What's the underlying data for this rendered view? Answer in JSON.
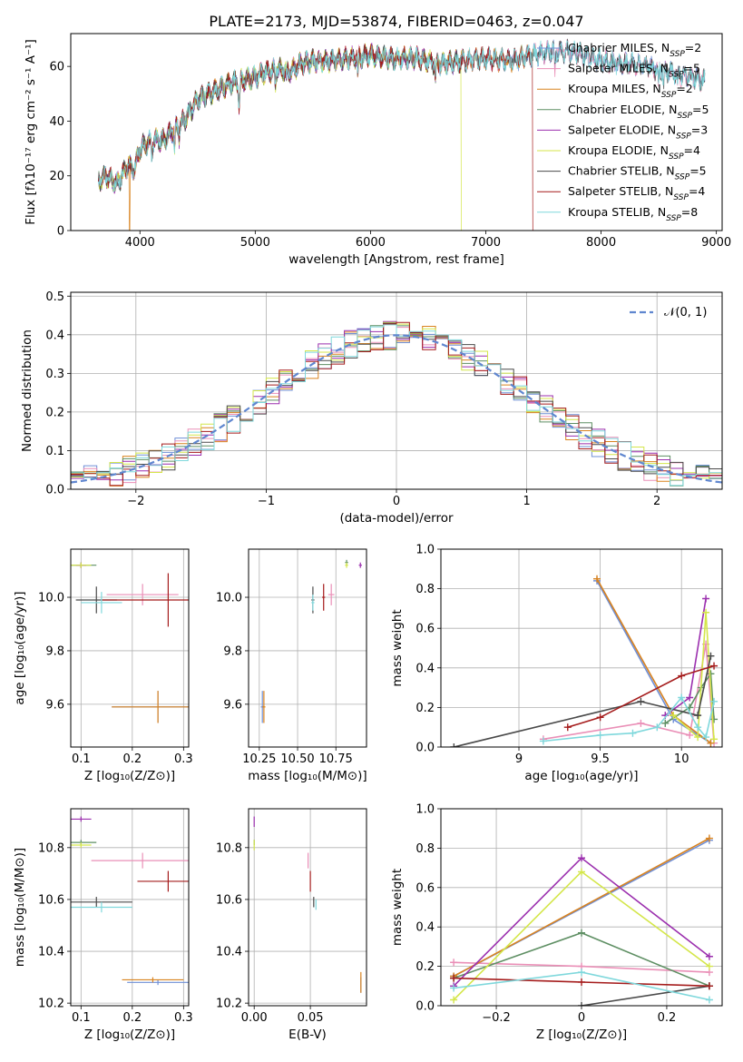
{
  "figure": {
    "title": "PLATE=2173, MJD=53874, FIBERID=0463, z=0.047"
  },
  "series_styles": [
    {
      "name": "Chabrier MILES",
      "label_main": "Chabrier MILES, N",
      "label_sub": "SSP",
      "label_tail": "=2",
      "color": "#6f8fd6"
    },
    {
      "name": "Salpeter MILES",
      "label_main": "Salpeter MILES, N",
      "label_sub": "SSP",
      "label_tail": "=5",
      "color": "#ea8fb7"
    },
    {
      "name": "Kroupa MILES",
      "label_main": "Kroupa MILES, N",
      "label_sub": "SSP",
      "label_tail": "=2",
      "color": "#d9831f"
    },
    {
      "name": "Chabrier ELODIE",
      "label_main": "Chabrier ELODIE, N",
      "label_sub": "SSP",
      "label_tail": "=5",
      "color": "#5e8f63"
    },
    {
      "name": "Salpeter ELODIE",
      "label_main": "Salpeter ELODIE, N",
      "label_sub": "SSP",
      "label_tail": "=3",
      "color": "#9b2fae"
    },
    {
      "name": "Kroupa ELODIE",
      "label_main": "Kroupa ELODIE, N",
      "label_sub": "SSP",
      "label_tail": "=4",
      "color": "#d4e64a"
    },
    {
      "name": "Chabrier STELIB",
      "label_main": "Chabrier STELIB, N",
      "label_sub": "SSP",
      "label_tail": "=5",
      "color": "#4a4a4a"
    },
    {
      "name": "Salpeter STELIB",
      "label_main": "Salpeter STELIB, N",
      "label_sub": "SSP",
      "label_tail": "=4",
      "color": "#a51c1c"
    },
    {
      "name": "Kroupa STELIB",
      "label_main": "Kroupa STELIB, N",
      "label_sub": "SSP",
      "label_tail": "=8",
      "color": "#7fd8dc"
    }
  ],
  "chart_data": [
    {
      "id": "spectrum",
      "type": "line",
      "xlabel": "wavelength [Angstrom, rest frame]",
      "ylabel": "Flux [fλ10⁻¹⁷ erg cm⁻² s⁻¹ A⁻¹]",
      "xlim": [
        3400,
        9050
      ],
      "ylim": [
        0,
        72
      ],
      "xticks": [
        4000,
        5000,
        6000,
        7000,
        8000,
        9000
      ],
      "yticks": [
        0,
        20,
        40,
        60
      ],
      "legend": "upper right",
      "grid": false,
      "continuum": [
        [
          3640,
          18
        ],
        [
          3700,
          20
        ],
        [
          3800,
          17
        ],
        [
          3900,
          24
        ],
        [
          3950,
          22
        ],
        [
          4000,
          30
        ],
        [
          4100,
          33
        ],
        [
          4200,
          33
        ],
        [
          4300,
          37
        ],
        [
          4400,
          41
        ],
        [
          4500,
          48
        ],
        [
          4600,
          50
        ],
        [
          4700,
          52
        ],
        [
          4800,
          54
        ],
        [
          4900,
          55
        ],
        [
          5000,
          56
        ],
        [
          5100,
          58
        ],
        [
          5200,
          59
        ],
        [
          5300,
          58
        ],
        [
          5400,
          61
        ],
        [
          5500,
          62
        ],
        [
          5600,
          62
        ],
        [
          5800,
          63
        ],
        [
          6000,
          64
        ],
        [
          6200,
          63
        ],
        [
          6400,
          63
        ],
        [
          6600,
          61
        ],
        [
          6800,
          62
        ],
        [
          7000,
          63
        ],
        [
          7200,
          62
        ],
        [
          7400,
          64
        ],
        [
          7600,
          66
        ],
        [
          7800,
          65
        ],
        [
          8000,
          62
        ],
        [
          8200,
          61
        ],
        [
          8400,
          60
        ],
        [
          8600,
          58
        ],
        [
          8800,
          56
        ],
        [
          8900,
          55
        ]
      ],
      "dips": [
        [
          3934,
          22
        ],
        [
          3969,
          24
        ],
        [
          4102,
          26
        ],
        [
          4300,
          30
        ],
        [
          4340,
          34
        ],
        [
          4861,
          45
        ],
        [
          5175,
          52
        ],
        [
          5270,
          54
        ],
        [
          5890,
          56
        ],
        [
          6563,
          55
        ],
        [
          6870,
          60
        ],
        [
          7600,
          58
        ],
        [
          8498,
          52
        ],
        [
          8542,
          52
        ],
        [
          8662,
          52
        ]
      ],
      "spectrum_range_by_series": {
        "Chabrier MILES": [
          3640,
          8900
        ],
        "Salpeter MILES": [
          3640,
          8900
        ],
        "Kroupa MILES": [
          3640,
          7410
        ],
        "Chabrier ELODIE": [
          3640,
          6790
        ],
        "Salpeter ELODIE": [
          3640,
          6790
        ],
        "Kroupa ELODIE": [
          3640,
          6790
        ],
        "Chabrier STELIB": [
          3640,
          8900
        ],
        "Salpeter STELIB": [
          3640,
          7410
        ],
        "Kroupa STELIB": [
          3640,
          8900
        ]
      },
      "drop_to_zero": [
        {
          "x": 3910,
          "series": "Kroupa MILES"
        },
        {
          "x": 6790,
          "series": "Kroupa ELODIE"
        },
        {
          "x": 7410,
          "series": "Salpeter STELIB"
        }
      ]
    },
    {
      "id": "residual-histogram",
      "type": "histogram",
      "xlabel": "(data-model)/error",
      "ylabel": "Normed distribution",
      "xlim": [
        -2.5,
        2.5
      ],
      "ylim": [
        0,
        0.51
      ],
      "xticks": [
        -2,
        -1,
        0,
        1,
        2
      ],
      "yticks": [
        0.0,
        0.1,
        0.2,
        0.3,
        0.4,
        0.5
      ],
      "grid": true,
      "bin_width": 0.1,
      "reference_curve": {
        "label": "𝒩(0, 1)",
        "mean": 0,
        "sigma": 1,
        "color": "#5f86cf"
      },
      "legend": "upper right"
    },
    {
      "id": "age-vs-Z",
      "type": "scatter",
      "xlabel": "Z [log₁₀(Z/Z⊙)]",
      "ylabel": "age  [log₁₀(age/yr)]",
      "xlim": [
        0.08,
        0.31
      ],
      "ylim": [
        9.44,
        10.18
      ],
      "xticks": [
        0.1,
        0.2,
        0.3
      ],
      "yticks": [
        9.6,
        9.8,
        10.0
      ],
      "grid": true,
      "points": [
        {
          "series": "Chabrier MILES",
          "x": 0.25,
          "y": 9.59,
          "xerr": 0.09,
          "yerr": 0.06
        },
        {
          "series": "Salpeter MILES",
          "x": 0.22,
          "y": 10.01,
          "xerr": 0.07,
          "yerr": 0.04
        },
        {
          "series": "Kroupa MILES",
          "x": 0.25,
          "y": 9.59,
          "xerr": 0.09,
          "yerr": 0.06
        },
        {
          "series": "Chabrier ELODIE",
          "x": 0.1,
          "y": 10.12,
          "xerr": 0.03,
          "yerr": 0.01
        },
        {
          "series": "Salpeter ELODIE",
          "x": 0.1,
          "y": 10.12,
          "xerr": 0.01,
          "yerr": 0.01
        },
        {
          "series": "Kroupa ELODIE",
          "x": 0.1,
          "y": 10.12,
          "xerr": 0.02,
          "yerr": 0.01
        },
        {
          "series": "Chabrier STELIB",
          "x": 0.13,
          "y": 9.99,
          "xerr": 0.04,
          "yerr": 0.05
        },
        {
          "series": "Salpeter STELIB",
          "x": 0.27,
          "y": 9.99,
          "xerr": 0.13,
          "yerr": 0.1
        },
        {
          "series": "Kroupa STELIB",
          "x": 0.14,
          "y": 9.98,
          "xerr": 0.04,
          "yerr": 0.04
        }
      ]
    },
    {
      "id": "age-vs-mass",
      "type": "scatter",
      "xlabel": "mass [log₁₀(M/M⊙)]",
      "ylabel": "",
      "xlim": [
        10.18,
        10.95
      ],
      "ylim": [
        9.44,
        10.18
      ],
      "xticks": [
        10.25,
        10.5,
        10.75
      ],
      "xtick_labels": [
        "10.25",
        "10.50",
        "10.75"
      ],
      "yticks": [
        9.6,
        9.8,
        10.0
      ],
      "grid": true,
      "points": [
        {
          "series": "Chabrier MILES",
          "x": 10.27,
          "y": 9.59,
          "xerr": 0.01,
          "yerr": 0.06
        },
        {
          "series": "Salpeter MILES",
          "x": 10.72,
          "y": 10.01,
          "xerr": 0.02,
          "yerr": 0.04
        },
        {
          "series": "Kroupa MILES",
          "x": 10.28,
          "y": 9.59,
          "xerr": 0.01,
          "yerr": 0.06
        },
        {
          "series": "Chabrier ELODIE",
          "x": 10.82,
          "y": 10.13,
          "xerr": 0.01,
          "yerr": 0.01
        },
        {
          "series": "Salpeter ELODIE",
          "x": 10.91,
          "y": 10.12,
          "xerr": 0.01,
          "yerr": 0.01
        },
        {
          "series": "Kroupa ELODIE",
          "x": 10.82,
          "y": 10.12,
          "xerr": 0.01,
          "yerr": 0.01
        },
        {
          "series": "Chabrier STELIB",
          "x": 10.6,
          "y": 9.99,
          "xerr": 0.01,
          "yerr": 0.05
        },
        {
          "series": "Salpeter STELIB",
          "x": 10.67,
          "y": 10.0,
          "xerr": 0.01,
          "yerr": 0.05
        },
        {
          "series": "Kroupa STELIB",
          "x": 10.6,
          "y": 9.98,
          "xerr": 0.01,
          "yerr": 0.03
        }
      ]
    },
    {
      "id": "weight-vs-age",
      "type": "line",
      "xlabel": "age  [log₁₀(age/yr)]",
      "ylabel": "mass weight",
      "xlim": [
        8.52,
        10.25
      ],
      "ylim": [
        0.0,
        1.0
      ],
      "xticks": [
        9.0,
        9.5,
        10.0
      ],
      "yticks": [
        0.0,
        0.2,
        0.4,
        0.6,
        0.8,
        1.0
      ],
      "grid": true,
      "series": [
        {
          "name": "Chabrier MILES",
          "x": [
            9.48,
            9.95,
            10.18
          ],
          "y": [
            0.84,
            0.14,
            0.02
          ]
        },
        {
          "name": "Salpeter MILES",
          "x": [
            9.15,
            9.75,
            10.05,
            10.15,
            10.2
          ],
          "y": [
            0.04,
            0.12,
            0.06,
            0.52,
            0.02
          ]
        },
        {
          "name": "Kroupa MILES",
          "x": [
            9.48,
            9.95,
            10.18
          ],
          "y": [
            0.85,
            0.16,
            0.02
          ]
        },
        {
          "name": "Chabrier ELODIE",
          "x": [
            9.9,
            10.05,
            10.12,
            10.18,
            10.2
          ],
          "y": [
            0.12,
            0.2,
            0.3,
            0.37,
            0.14
          ]
        },
        {
          "name": "Salpeter ELODIE",
          "x": [
            9.9,
            10.05,
            10.15
          ],
          "y": [
            0.16,
            0.25,
            0.75
          ]
        },
        {
          "name": "Kroupa ELODIE",
          "x": [
            9.95,
            10.1,
            10.15,
            10.2
          ],
          "y": [
            0.16,
            0.05,
            0.68,
            0.04
          ]
        },
        {
          "name": "Chabrier STELIB",
          "x": [
            8.6,
            9.75,
            10.1,
            10.18
          ],
          "y": [
            0.0,
            0.23,
            0.16,
            0.46
          ]
        },
        {
          "name": "Salpeter STELIB",
          "x": [
            9.3,
            9.5,
            10.0,
            10.2
          ],
          "y": [
            0.1,
            0.15,
            0.36,
            0.41
          ]
        },
        {
          "name": "Kroupa STELIB",
          "x": [
            9.15,
            9.5,
            9.7,
            9.85,
            10.0,
            10.1,
            10.15,
            10.2
          ],
          "y": [
            0.03,
            0.06,
            0.07,
            0.1,
            0.25,
            0.1,
            0.05,
            0.23
          ]
        }
      ]
    },
    {
      "id": "mass-vs-Z",
      "type": "scatter",
      "xlabel": "Z [log₁₀(Z/Z⊙)]",
      "ylabel": "mass [log₁₀(M/M⊙)]",
      "xlim": [
        0.08,
        0.31
      ],
      "ylim": [
        10.19,
        10.95
      ],
      "xticks": [
        0.1,
        0.2,
        0.3
      ],
      "yticks": [
        10.2,
        10.4,
        10.6,
        10.8
      ],
      "grid": true,
      "points": [
        {
          "series": "Chabrier MILES",
          "x": 0.25,
          "y": 10.28,
          "xerr": 0.06,
          "yerr": 0.01
        },
        {
          "series": "Salpeter MILES",
          "x": 0.22,
          "y": 10.75,
          "xerr": 0.1,
          "yerr": 0.03
        },
        {
          "series": "Kroupa MILES",
          "x": 0.24,
          "y": 10.29,
          "xerr": 0.06,
          "yerr": 0.01
        },
        {
          "series": "Chabrier ELODIE",
          "x": 0.1,
          "y": 10.82,
          "xerr": 0.03,
          "yerr": 0.01
        },
        {
          "series": "Salpeter ELODIE",
          "x": 0.1,
          "y": 10.91,
          "xerr": 0.02,
          "yerr": 0.01
        },
        {
          "series": "Kroupa ELODIE",
          "x": 0.1,
          "y": 10.81,
          "xerr": 0.02,
          "yerr": 0.01
        },
        {
          "series": "Chabrier STELIB",
          "x": 0.13,
          "y": 10.59,
          "xerr": 0.07,
          "yerr": 0.02
        },
        {
          "series": "Salpeter STELIB",
          "x": 0.27,
          "y": 10.67,
          "xerr": 0.06,
          "yerr": 0.04
        },
        {
          "series": "Kroupa STELIB",
          "x": 0.14,
          "y": 10.57,
          "xerr": 0.06,
          "yerr": 0.02
        }
      ]
    },
    {
      "id": "mass-vs-ebv",
      "type": "scatter",
      "xlabel": "E(B-V)",
      "ylabel": "",
      "xlim": [
        -0.005,
        0.1
      ],
      "ylim": [
        10.19,
        10.95
      ],
      "xticks": [
        0.0,
        0.05
      ],
      "xtick_labels": [
        "0.00",
        "0.05"
      ],
      "yticks": [
        10.2,
        10.4,
        10.6,
        10.8
      ],
      "grid": true,
      "points": [
        {
          "series": "Chabrier MILES",
          "x": 0.095,
          "y": 10.27,
          "xerr": 0,
          "yerr": 0.03
        },
        {
          "series": "Salpeter MILES",
          "x": 0.048,
          "y": 10.75,
          "xerr": 0,
          "yerr": 0.03
        },
        {
          "series": "Kroupa MILES",
          "x": 0.095,
          "y": 10.28,
          "xerr": 0,
          "yerr": 0.04
        },
        {
          "series": "Chabrier ELODIE",
          "x": 0.0,
          "y": 10.82,
          "xerr": 0,
          "yerr": 0.01
        },
        {
          "series": "Salpeter ELODIE",
          "x": 0.0,
          "y": 10.9,
          "xerr": 0,
          "yerr": 0.02
        },
        {
          "series": "Kroupa ELODIE",
          "x": 0.0,
          "y": 10.81,
          "xerr": 0,
          "yerr": 0.02
        },
        {
          "series": "Chabrier STELIB",
          "x": 0.053,
          "y": 10.59,
          "xerr": 0,
          "yerr": 0.02
        },
        {
          "series": "Salpeter STELIB",
          "x": 0.05,
          "y": 10.67,
          "xerr": 0,
          "yerr": 0.04
        },
        {
          "series": "Kroupa STELIB",
          "x": 0.055,
          "y": 10.58,
          "xerr": 0,
          "yerr": 0.02
        }
      ]
    },
    {
      "id": "weight-vs-Z",
      "type": "line",
      "xlabel": "Z [log₁₀(Z/Z⊙)]",
      "ylabel": "mass weight",
      "xlim": [
        -0.33,
        0.33
      ],
      "ylim": [
        0.0,
        1.0
      ],
      "xticks": [
        -0.2,
        0.0,
        0.2
      ],
      "yticks": [
        0.0,
        0.2,
        0.4,
        0.6,
        0.8,
        1.0
      ],
      "grid": true,
      "series": [
        {
          "name": "Chabrier MILES",
          "x": [
            -0.3,
            0.3
          ],
          "y": [
            0.15,
            0.84
          ]
        },
        {
          "name": "Salpeter MILES",
          "x": [
            -0.3,
            0.0,
            0.3
          ],
          "y": [
            0.22,
            0.2,
            0.17
          ]
        },
        {
          "name": "Kroupa MILES",
          "x": [
            -0.3,
            0.3
          ],
          "y": [
            0.15,
            0.85
          ]
        },
        {
          "name": "Chabrier ELODIE",
          "x": [
            -0.3,
            0.0,
            0.3
          ],
          "y": [
            0.14,
            0.37,
            0.1
          ]
        },
        {
          "name": "Salpeter ELODIE",
          "x": [
            -0.3,
            0.0,
            0.3
          ],
          "y": [
            0.1,
            0.75,
            0.25
          ]
        },
        {
          "name": "Kroupa ELODIE",
          "x": [
            -0.3,
            0.0,
            0.3
          ],
          "y": [
            0.03,
            0.68,
            0.2
          ]
        },
        {
          "name": "Chabrier STELIB",
          "x": [
            0.0,
            0.3
          ],
          "y": [
            0.0,
            0.1
          ]
        },
        {
          "name": "Salpeter STELIB",
          "x": [
            -0.3,
            0.0,
            0.3
          ],
          "y": [
            0.14,
            0.12,
            0.1
          ]
        },
        {
          "name": "Kroupa STELIB",
          "x": [
            -0.3,
            0.0,
            0.3
          ],
          "y": [
            0.09,
            0.17,
            0.03
          ]
        }
      ]
    }
  ]
}
